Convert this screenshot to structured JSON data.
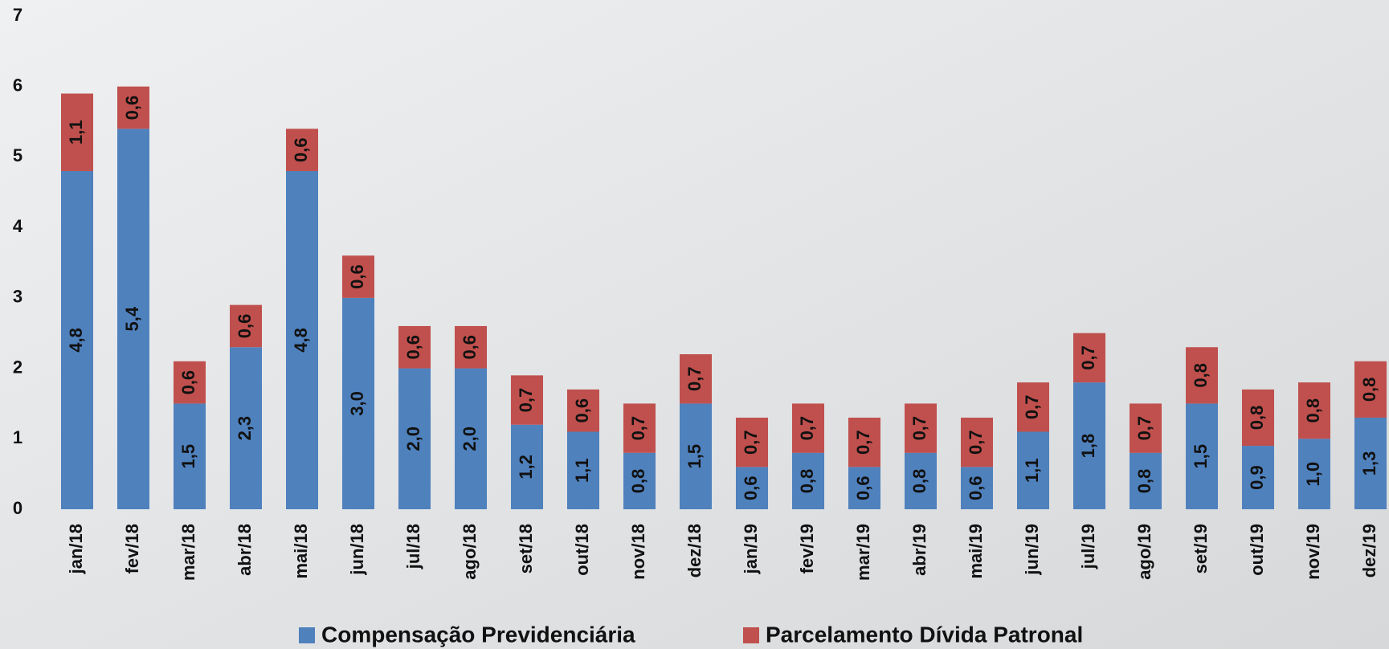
{
  "chart_data": {
    "type": "stacked_bar",
    "categories": [
      "jan/18",
      "fev/18",
      "mar/18",
      "abr/18",
      "mai/18",
      "jun/18",
      "jul/18",
      "ago/18",
      "set/18",
      "out/18",
      "nov/18",
      "dez/18",
      "jan/19",
      "fev/19",
      "mar/19",
      "abr/19",
      "mai/19",
      "jun/19",
      "jul/19",
      "ago/19",
      "set/19",
      "out/19",
      "nov/19",
      "dez/19"
    ],
    "series": [
      {
        "name": "Compensação Previdenciária",
        "color": "#4f81bd",
        "values": [
          4.8,
          5.4,
          1.5,
          2.3,
          4.8,
          3.0,
          2.0,
          2.0,
          1.2,
          1.1,
          0.8,
          1.5,
          0.6,
          0.8,
          0.6,
          0.8,
          0.6,
          1.1,
          1.8,
          0.8,
          1.5,
          0.9,
          1.0,
          1.3
        ],
        "value_labels": [
          "4,8",
          "5,4",
          "1,5",
          "2,3",
          "4,8",
          "3,0",
          "2,0",
          "2,0",
          "1,2",
          "1,1",
          "0,8",
          "1,5",
          "0,6",
          "0,8",
          "0,6",
          "0,8",
          "0,6",
          "1,1",
          "1,8",
          "0,8",
          "1,5",
          "0,9",
          "1,0",
          "1,3"
        ]
      },
      {
        "name": "Parcelamento Dívida Patronal",
        "color": "#c0504d",
        "values": [
          1.1,
          0.6,
          0.6,
          0.6,
          0.6,
          0.6,
          0.6,
          0.6,
          0.7,
          0.6,
          0.7,
          0.7,
          0.7,
          0.7,
          0.7,
          0.7,
          0.7,
          0.7,
          0.7,
          0.7,
          0.8,
          0.8,
          0.8,
          0.8
        ],
        "value_labels": [
          "1,1",
          "0,6",
          "0,6",
          "0,6",
          "0,6",
          "0,6",
          "0,6",
          "0,6",
          "0,7",
          "0,6",
          "0,7",
          "0,7",
          "0,7",
          "0,7",
          "0,7",
          "0,7",
          "0,7",
          "0,7",
          "0,7",
          "0,7",
          "0,8",
          "0,8",
          "0,8",
          "0,8"
        ]
      }
    ],
    "ylim": [
      0,
      7
    ],
    "yticks": [
      0,
      1,
      2,
      3,
      4,
      5,
      6,
      7
    ],
    "legend": "bottom"
  }
}
